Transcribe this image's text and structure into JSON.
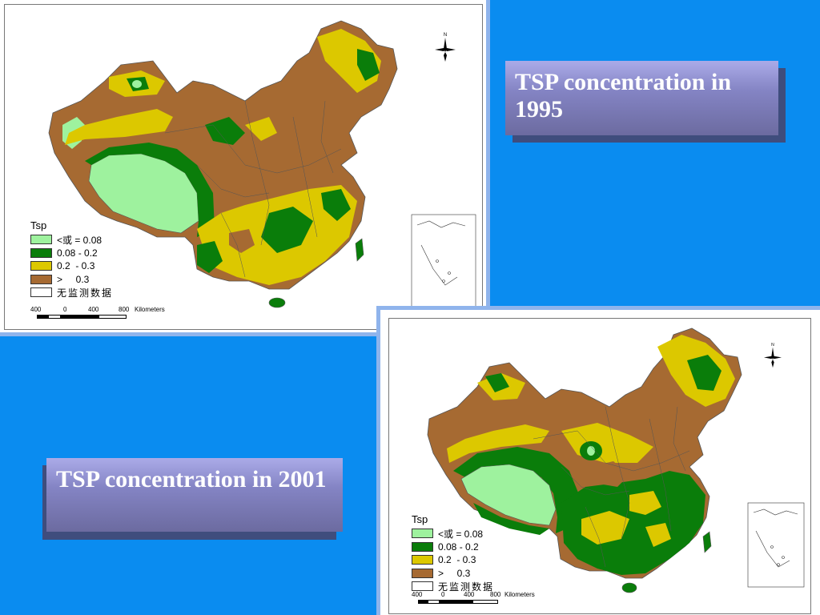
{
  "title_1995": "TSP concentration in 1995",
  "title_2001": "TSP concentration in 2001",
  "maps": [
    {
      "year": "1995",
      "legend_title": "Tsp",
      "legend_items": [
        {
          "label": "<或 = 0.08",
          "color": "#9ef29e"
        },
        {
          "label": "0.08 - 0.2",
          "color": "#0a7d0a"
        },
        {
          "label": "0.2  - 0.3",
          "color": "#dcc800"
        },
        {
          "label": ">     0.3",
          "color": "#a66a32"
        },
        {
          "label": "无监测数据",
          "color": "#ffffff"
        }
      ],
      "scale_ticks": [
        "400",
        "0",
        "400",
        "800"
      ],
      "scale_units": "Kilometers",
      "north_label": "N"
    },
    {
      "year": "2001",
      "legend_title": "Tsp",
      "legend_items": [
        {
          "label": "<或 = 0.08",
          "color": "#9ef29e"
        },
        {
          "label": "0.08 - 0.2",
          "color": "#0a7d0a"
        },
        {
          "label": "0.2  - 0.3",
          "color": "#dcc800"
        },
        {
          "label": ">     0.3",
          "color": "#a66a32"
        },
        {
          "label": "无监测数据",
          "color": "#ffffff"
        }
      ],
      "scale_ticks": [
        "400",
        "0",
        "400",
        "800"
      ],
      "scale_units": "Kilometers",
      "north_label": "N"
    }
  ]
}
